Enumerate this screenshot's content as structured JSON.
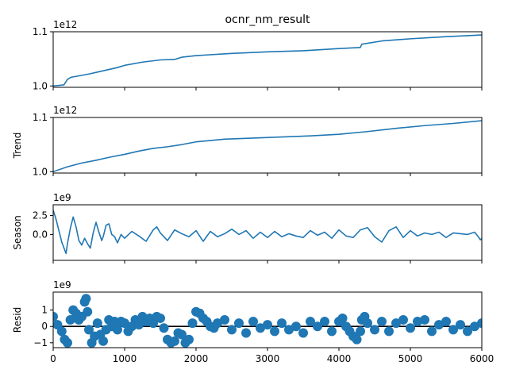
{
  "chart_data": {
    "type": "line",
    "title": "ocnr_nm_result",
    "xlim": [
      0,
      6000
    ],
    "xticks": [
      0,
      1000,
      2000,
      3000,
      4000,
      5000,
      6000
    ],
    "xtick_labels": [
      "0",
      "1000",
      "2000",
      "3000",
      "4000",
      "5000",
      "6000"
    ],
    "line_color": "#1f77b4",
    "zero_line_color": "#000000",
    "panels": [
      {
        "key": "observed",
        "ylabel": "",
        "offset_label": "1e12",
        "ylim": [
          0.9975,
          1.1
        ],
        "yticks": [
          1.0,
          1.1
        ],
        "ytick_labels": [
          "1.0",
          "1.1"
        ],
        "series": [
          {
            "type": "line",
            "x": [
              0,
              150,
              200,
              250,
              500,
              700,
              900,
              1000,
              1250,
              1500,
              1700,
              1800,
              2000,
              2500,
              3000,
              3500,
              4000,
              4300,
              4320,
              4600,
              5000,
              5500,
              6000
            ],
            "y": [
              1.0,
              1.002,
              1.012,
              1.016,
              1.022,
              1.028,
              1.034,
              1.038,
              1.044,
              1.048,
              1.049,
              1.053,
              1.056,
              1.06,
              1.063,
              1.065,
              1.069,
              1.071,
              1.077,
              1.083,
              1.087,
              1.091,
              1.094
            ]
          }
        ]
      },
      {
        "key": "trend",
        "ylabel": "Trend",
        "offset_label": "1e12",
        "ylim": [
          0.9975,
          1.1
        ],
        "yticks": [
          1.0,
          1.1
        ],
        "ytick_labels": [
          "1.0",
          "1.1"
        ],
        "series": [
          {
            "type": "line",
            "x": [
              0,
              200,
              400,
              600,
              800,
              1000,
              1200,
              1400,
              1600,
              1800,
              2000,
              2400,
              2800,
              3200,
              3600,
              4000,
              4400,
              4800,
              5200,
              5600,
              6000
            ],
            "y": [
              1.0,
              1.009,
              1.016,
              1.021,
              1.027,
              1.032,
              1.038,
              1.043,
              1.046,
              1.05,
              1.055,
              1.06,
              1.062,
              1.064,
              1.066,
              1.069,
              1.074,
              1.08,
              1.085,
              1.089,
              1.094
            ]
          }
        ]
      },
      {
        "key": "season",
        "ylabel": "Season",
        "offset_label": "1e9",
        "ylim": [
          -3.4,
          3.9
        ],
        "yticks": [
          2.5,
          0.0
        ],
        "ytick_labels": [
          "2.5",
          "0.0"
        ],
        "series": [
          {
            "type": "line",
            "x": [
              0,
              40,
              80,
              120,
              160,
              180,
              200,
              240,
              280,
              320,
              360,
              400,
              440,
              480,
              520,
              560,
              600,
              640,
              680,
              700,
              740,
              780,
              820,
              860,
              900,
              950,
              1000,
              1100,
              1200,
              1300,
              1400,
              1450,
              1500,
              1600,
              1700,
              1800,
              1900,
              2000,
              2100,
              2200,
              2300,
              2400,
              2500,
              2600,
              2700,
              2800,
              2900,
              3000,
              3100,
              3200,
              3300,
              3400,
              3500,
              3600,
              3700,
              3800,
              3900,
              4000,
              4100,
              4200,
              4300,
              4400,
              4500,
              4600,
              4700,
              4800,
              4900,
              5000,
              5100,
              5200,
              5300,
              5400,
              5500,
              5600,
              5700,
              5800,
              5900,
              5950,
              5980,
              6000
            ],
            "y": [
              3.2,
              2.0,
              0.5,
              -1.0,
              -2.0,
              -2.5,
              -1.2,
              0.8,
              2.3,
              1.0,
              -0.8,
              -1.4,
              -0.5,
              -1.2,
              -1.8,
              0.2,
              1.6,
              0.3,
              -0.8,
              -0.3,
              1.2,
              1.4,
              0.0,
              -0.3,
              -1.1,
              0.0,
              -0.5,
              0.4,
              -0.2,
              -0.9,
              0.6,
              1.0,
              0.2,
              -0.8,
              0.6,
              0.1,
              -0.3,
              0.5,
              -0.9,
              0.4,
              -0.3,
              0.1,
              0.7,
              0.0,
              0.5,
              -0.5,
              0.3,
              -0.4,
              0.4,
              -0.3,
              0.1,
              -0.2,
              -0.4,
              0.5,
              -0.1,
              0.3,
              -0.5,
              0.6,
              -0.2,
              -0.4,
              0.6,
              0.9,
              -0.3,
              -1.0,
              0.5,
              1.0,
              -0.4,
              0.5,
              -0.2,
              0.2,
              0.0,
              0.3,
              -0.4,
              0.2,
              0.1,
              0.0,
              0.3,
              -0.3,
              -0.7,
              -0.5
            ]
          }
        ]
      },
      {
        "key": "resid",
        "ylabel": "Resid",
        "offset_label": "1e9",
        "ylim": [
          -1.3,
          2.1
        ],
        "yticks": [
          1,
          0,
          -1
        ],
        "ytick_labels": [
          "1",
          "0",
          "−1"
        ],
        "zero_line": true,
        "series": [
          {
            "type": "scatter",
            "x": [
              0,
              60,
              120,
              160,
              200,
              240,
              280,
              320,
              360,
              400,
              440,
              460,
              480,
              500,
              540,
              580,
              620,
              660,
              700,
              740,
              780,
              820,
              860,
              900,
              950,
              1000,
              1050,
              1100,
              1150,
              1200,
              1250,
              1300,
              1350,
              1400,
              1450,
              1500,
              1550,
              1600,
              1650,
              1700,
              1750,
              1800,
              1850,
              1900,
              1950,
              2000,
              2050,
              2100,
              2150,
              2200,
              2250,
              2300,
              2400,
              2500,
              2600,
              2700,
              2800,
              2900,
              3000,
              3100,
              3200,
              3300,
              3400,
              3500,
              3600,
              3700,
              3800,
              3900,
              4000,
              4050,
              4100,
              4150,
              4200,
              4250,
              4300,
              4320,
              4360,
              4400,
              4500,
              4600,
              4700,
              4800,
              4900,
              5000,
              5100,
              5200,
              5300,
              5400,
              5500,
              5600,
              5700,
              5800,
              5900,
              6000
            ],
            "y": [
              0.6,
              0.1,
              -0.3,
              -0.8,
              -1.0,
              0.4,
              1.0,
              0.8,
              0.4,
              0.6,
              1.5,
              1.7,
              0.9,
              -0.2,
              -1.0,
              -0.6,
              0.2,
              -0.5,
              -0.9,
              -0.2,
              0.4,
              0.0,
              0.3,
              -0.2,
              0.3,
              0.2,
              -0.3,
              0.0,
              0.4,
              0.1,
              0.6,
              0.3,
              0.5,
              0.2,
              0.6,
              0.5,
              -0.1,
              -0.8,
              -1.0,
              -0.9,
              -0.4,
              -0.5,
              -1.0,
              -0.8,
              0.2,
              0.9,
              0.8,
              0.5,
              0.3,
              0.0,
              -0.1,
              0.2,
              0.4,
              -0.2,
              0.2,
              -0.4,
              0.3,
              -0.1,
              0.1,
              -0.3,
              0.2,
              -0.2,
              0.0,
              -0.4,
              0.3,
              0.0,
              0.3,
              -0.3,
              0.3,
              0.5,
              0.0,
              -0.3,
              -0.6,
              -0.8,
              -0.3,
              0.4,
              0.6,
              0.2,
              -0.2,
              0.3,
              -0.3,
              0.2,
              0.4,
              -0.1,
              0.3,
              0.4,
              -0.3,
              0.1,
              0.3,
              -0.2,
              0.1,
              -0.3,
              0.0,
              0.2
            ]
          }
        ]
      }
    ]
  }
}
